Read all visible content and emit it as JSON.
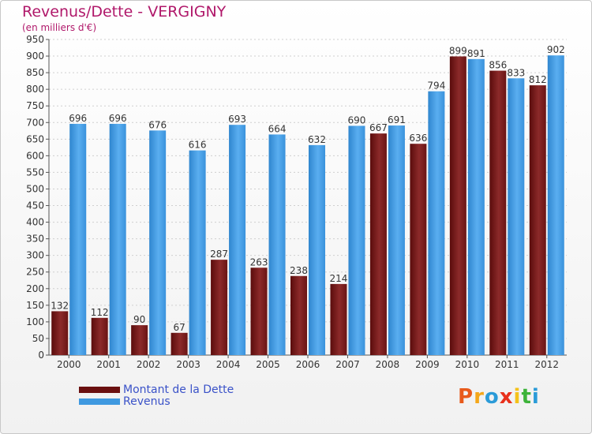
{
  "header": {
    "title": "Revenus/Dette - VERGIGNY",
    "subtitle": "(en milliers d'€)"
  },
  "legend": {
    "items": [
      {
        "label": "Montant de la Dette",
        "color": "#7a1a1a"
      },
      {
        "label": "Revenus",
        "color": "#3f99e0"
      }
    ]
  },
  "logo": {
    "text": "Proxiti",
    "colors": [
      "#e85a1b",
      "#f4a71a",
      "#2b9bd8",
      "#e8311c",
      "#f4c21a",
      "#3db33a",
      "#2b9bd8"
    ]
  },
  "chart_data": {
    "type": "bar",
    "categories": [
      "2000",
      "2001",
      "2002",
      "2003",
      "2004",
      "2005",
      "2006",
      "2007",
      "2008",
      "2009",
      "2010",
      "2011",
      "2012"
    ],
    "series": [
      {
        "name": "Montant de la Dette",
        "color": "#7a1a1a",
        "values": [
          132,
          112,
          90,
          67,
          287,
          263,
          238,
          214,
          667,
          636,
          899,
          856,
          812
        ]
      },
      {
        "name": "Revenus",
        "color": "#3f99e0",
        "values": [
          696,
          696,
          676,
          616,
          693,
          664,
          632,
          690,
          691,
          794,
          891,
          833,
          902
        ]
      }
    ],
    "title": "Revenus/Dette - VERGIGNY",
    "ylabel": "(en milliers d'€)",
    "ylim": [
      0,
      950
    ],
    "ytick_step": 50,
    "grid": true,
    "legend_position": "bottom-left"
  }
}
